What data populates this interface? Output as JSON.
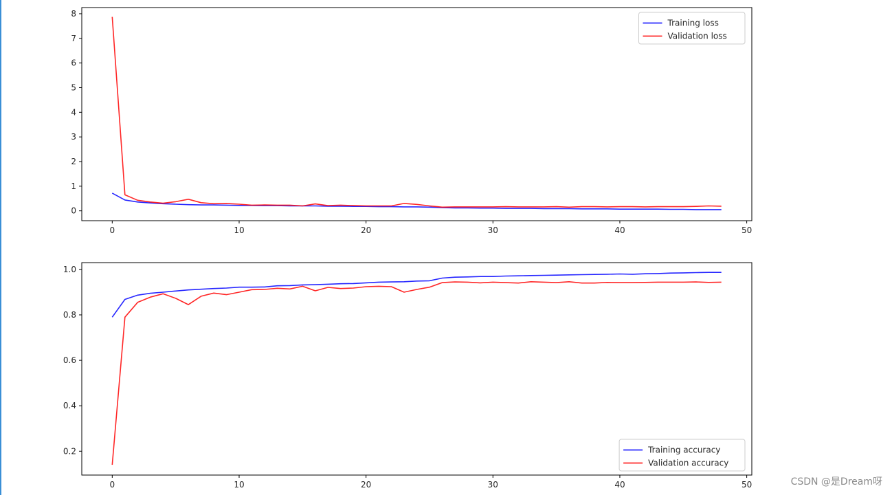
{
  "chart_data": [
    {
      "type": "line",
      "title": "",
      "xlabel": "",
      "ylabel": "",
      "xlim": [
        -2.4,
        50.4
      ],
      "ylim": [
        -0.4,
        8.25
      ],
      "xticks": [
        0,
        10,
        20,
        30,
        40,
        50
      ],
      "yticks": [
        0,
        1,
        2,
        3,
        4,
        5,
        6,
        7,
        8
      ],
      "grid": false,
      "legend_position": "top-right",
      "x": [
        0,
        1,
        2,
        3,
        4,
        5,
        6,
        7,
        8,
        9,
        10,
        11,
        12,
        13,
        14,
        15,
        16,
        17,
        18,
        19,
        20,
        21,
        22,
        23,
        24,
        25,
        26,
        27,
        28,
        29,
        30,
        31,
        32,
        33,
        34,
        35,
        36,
        37,
        38,
        39,
        40,
        41,
        42,
        43,
        44,
        45,
        46,
        47,
        48
      ],
      "series": [
        {
          "name": "Training loss",
          "color": "#0000ff",
          "values": [
            0.72,
            0.44,
            0.36,
            0.32,
            0.29,
            0.27,
            0.25,
            0.24,
            0.24,
            0.23,
            0.22,
            0.22,
            0.21,
            0.21,
            0.2,
            0.2,
            0.2,
            0.19,
            0.19,
            0.18,
            0.18,
            0.17,
            0.17,
            0.16,
            0.16,
            0.15,
            0.13,
            0.12,
            0.12,
            0.11,
            0.11,
            0.1,
            0.1,
            0.1,
            0.09,
            0.09,
            0.09,
            0.08,
            0.08,
            0.08,
            0.07,
            0.07,
            0.07,
            0.07,
            0.06,
            0.06,
            0.05,
            0.05,
            0.05
          ]
        },
        {
          "name": "Validation loss",
          "color": "#ff0000",
          "values": [
            7.87,
            0.65,
            0.43,
            0.36,
            0.31,
            0.37,
            0.47,
            0.33,
            0.29,
            0.3,
            0.27,
            0.23,
            0.24,
            0.23,
            0.23,
            0.2,
            0.28,
            0.21,
            0.23,
            0.21,
            0.2,
            0.2,
            0.2,
            0.3,
            0.26,
            0.2,
            0.15,
            0.16,
            0.16,
            0.16,
            0.16,
            0.17,
            0.16,
            0.16,
            0.16,
            0.17,
            0.15,
            0.17,
            0.17,
            0.16,
            0.17,
            0.17,
            0.16,
            0.17,
            0.17,
            0.17,
            0.18,
            0.2,
            0.19
          ]
        }
      ]
    },
    {
      "type": "line",
      "title": "",
      "xlabel": "",
      "ylabel": "",
      "xlim": [
        -2.4,
        50.4
      ],
      "ylim": [
        0.095,
        1.03
      ],
      "xticks": [
        0,
        10,
        20,
        30,
        40,
        50
      ],
      "yticks": [
        0.2,
        0.4,
        0.6,
        0.8,
        1.0
      ],
      "ytick_labels": [
        "0.2",
        "0.4",
        "0.6",
        "0.8",
        "1.0"
      ],
      "grid": false,
      "legend_position": "bottom-right",
      "x": [
        0,
        1,
        2,
        3,
        4,
        5,
        6,
        7,
        8,
        9,
        10,
        11,
        12,
        13,
        14,
        15,
        16,
        17,
        18,
        19,
        20,
        21,
        22,
        23,
        24,
        25,
        26,
        27,
        28,
        29,
        30,
        31,
        32,
        33,
        34,
        35,
        36,
        37,
        38,
        39,
        40,
        41,
        42,
        43,
        44,
        45,
        46,
        47,
        48
      ],
      "series": [
        {
          "name": "Training accuracy",
          "color": "#0000ff",
          "values": [
            0.79,
            0.868,
            0.887,
            0.895,
            0.9,
            0.905,
            0.91,
            0.913,
            0.916,
            0.918,
            0.922,
            0.922,
            0.923,
            0.928,
            0.929,
            0.932,
            0.933,
            0.935,
            0.937,
            0.938,
            0.941,
            0.944,
            0.945,
            0.946,
            0.949,
            0.95,
            0.962,
            0.966,
            0.967,
            0.969,
            0.969,
            0.971,
            0.972,
            0.973,
            0.974,
            0.975,
            0.976,
            0.977,
            0.978,
            0.979,
            0.98,
            0.979,
            0.981,
            0.982,
            0.984,
            0.985,
            0.986,
            0.987,
            0.987
          ]
        },
        {
          "name": "Validation accuracy",
          "color": "#ff0000",
          "values": [
            0.14,
            0.79,
            0.855,
            0.878,
            0.893,
            0.873,
            0.845,
            0.882,
            0.896,
            0.889,
            0.9,
            0.911,
            0.912,
            0.917,
            0.914,
            0.926,
            0.906,
            0.921,
            0.916,
            0.918,
            0.924,
            0.926,
            0.924,
            0.9,
            0.912,
            0.922,
            0.942,
            0.945,
            0.944,
            0.941,
            0.944,
            0.942,
            0.94,
            0.946,
            0.944,
            0.942,
            0.946,
            0.94,
            0.94,
            0.943,
            0.942,
            0.942,
            0.943,
            0.944,
            0.944,
            0.944,
            0.945,
            0.943,
            0.944
          ]
        }
      ]
    }
  ],
  "watermark": "CSDN @是Dream呀",
  "colors": {
    "left_rule": "#3a8fd6",
    "axes_frame": "#000000",
    "text": "#262626"
  }
}
